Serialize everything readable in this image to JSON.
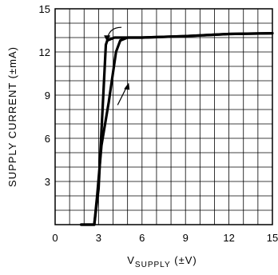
{
  "chart_data": {
    "type": "line",
    "title": "",
    "xlabel": {
      "main": "V",
      "sub": "SUPPLY",
      "unit": " (±V)"
    },
    "ylabel": "SUPPLY CURRENT (±mA)",
    "xlim": [
      0,
      15
    ],
    "ylim": [
      0,
      15
    ],
    "x_ticks": [
      0,
      3,
      6,
      9,
      12,
      15
    ],
    "y_ticks": [
      3,
      6,
      9,
      12,
      15
    ],
    "grid": true,
    "grid_step": 1,
    "legend": "none",
    "series": [
      {
        "direction": "decreasing",
        "points": [
          [
            15,
            13.3
          ],
          [
            12,
            13.25
          ],
          [
            9,
            13.1
          ],
          [
            6,
            13.0
          ],
          [
            5.0,
            13.0
          ],
          [
            4.1,
            13.0
          ],
          [
            3.6,
            12.8
          ],
          [
            3.5,
            12.5
          ],
          [
            3.2,
            6.5
          ],
          [
            3.0,
            2.5
          ],
          [
            2.7,
            0
          ],
          [
            1.8,
            0
          ]
        ]
      },
      {
        "direction": "increasing",
        "points": [
          [
            1.8,
            0
          ],
          [
            2.7,
            0
          ],
          [
            2.9,
            2.0
          ],
          [
            3.2,
            5.5
          ],
          [
            3.7,
            8.5
          ],
          [
            4.2,
            12.0
          ],
          [
            4.5,
            12.8
          ],
          [
            5.0,
            13.0
          ],
          [
            6,
            13.0
          ],
          [
            9,
            13.1
          ],
          [
            12,
            13.25
          ],
          [
            15,
            13.3
          ]
        ]
      }
    ],
    "annotations": [
      {
        "type": "arrow",
        "direction": "down",
        "near": [
          3.7,
          13.6
        ]
      },
      {
        "type": "arrow",
        "direction": "up",
        "near": [
          4.7,
          9.2
        ]
      }
    ]
  }
}
